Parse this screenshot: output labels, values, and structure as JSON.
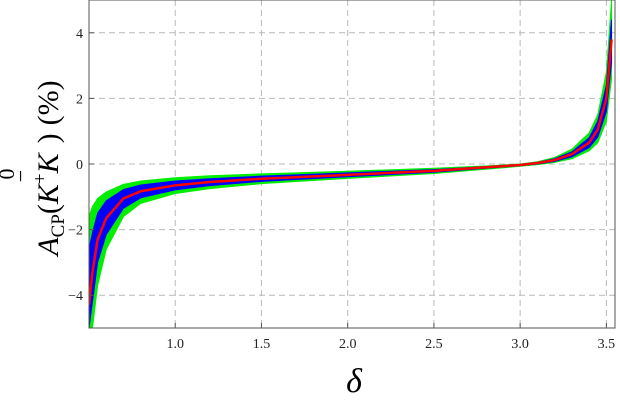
{
  "chart_data": {
    "type": "area",
    "title": "",
    "xlabel": "δ",
    "ylabel": "A_CP(K+ K̄0) (%)",
    "ylabel_parts": {
      "A": "A",
      "sub": "CP",
      "open": "(",
      "K1": "K",
      "plus": "+",
      "K2": "K",
      "bar": "−",
      "zero": "0",
      "close": ")",
      "unit": "(%)"
    },
    "xlim": [
      0.5,
      3.55
    ],
    "ylim": [
      -5,
      5
    ],
    "grid": true,
    "x_ticks": [
      1.0,
      1.5,
      2.0,
      2.5,
      3.0,
      3.5
    ],
    "x_tick_labels": [
      "1.0",
      "1.5",
      "2.0",
      "2.5",
      "3.0",
      "3.5"
    ],
    "y_ticks": [
      -4,
      -2,
      0,
      2,
      4
    ],
    "y_tick_labels": [
      "−4",
      "−2",
      "0",
      "2",
      "4"
    ],
    "x": [
      0.5,
      0.52,
      0.55,
      0.6,
      0.7,
      0.8,
      1.0,
      1.2,
      1.5,
      2.0,
      2.5,
      2.8,
      3.0,
      3.1,
      3.2,
      3.3,
      3.4,
      3.45,
      3.5,
      3.53
    ],
    "series": [
      {
        "role": "outer-band-upper",
        "color": "#00ee00",
        "values": [
          -1.6,
          -1.3,
          -1.05,
          -0.85,
          -0.62,
          -0.52,
          -0.42,
          -0.36,
          -0.3,
          -0.22,
          -0.13,
          -0.06,
          0.0,
          0.07,
          0.2,
          0.45,
          0.95,
          1.5,
          2.8,
          5.0
        ]
      },
      {
        "role": "inner-band-upper",
        "color": "#0000ff",
        "values": [
          -2.6,
          -2.1,
          -1.5,
          -1.12,
          -0.78,
          -0.64,
          -0.52,
          -0.45,
          -0.37,
          -0.27,
          -0.17,
          -0.08,
          -0.01,
          0.05,
          0.16,
          0.37,
          0.8,
          1.3,
          2.4,
          4.4
        ]
      },
      {
        "role": "central",
        "color": "#ff0000",
        "values": [
          -4.3,
          -3.3,
          -2.3,
          -1.65,
          -1.05,
          -0.83,
          -0.65,
          -0.55,
          -0.45,
          -0.33,
          -0.21,
          -0.1,
          -0.03,
          0.03,
          0.12,
          0.3,
          0.65,
          1.05,
          2.0,
          3.8
        ]
      },
      {
        "role": "inner-band-lower",
        "color": "#0000ff",
        "values": [
          -5.0,
          -4.2,
          -3.0,
          -2.15,
          -1.35,
          -1.03,
          -0.79,
          -0.66,
          -0.53,
          -0.39,
          -0.25,
          -0.13,
          -0.05,
          0.0,
          0.08,
          0.22,
          0.5,
          0.82,
          1.6,
          3.1
        ]
      },
      {
        "role": "outer-band-lower",
        "color": "#00ee00",
        "values": [
          -5.0,
          -5.0,
          -3.7,
          -2.6,
          -1.6,
          -1.2,
          -0.9,
          -0.75,
          -0.6,
          -0.44,
          -0.29,
          -0.16,
          -0.07,
          -0.02,
          0.05,
          0.16,
          0.4,
          0.65,
          1.3,
          2.6
        ]
      }
    ]
  }
}
